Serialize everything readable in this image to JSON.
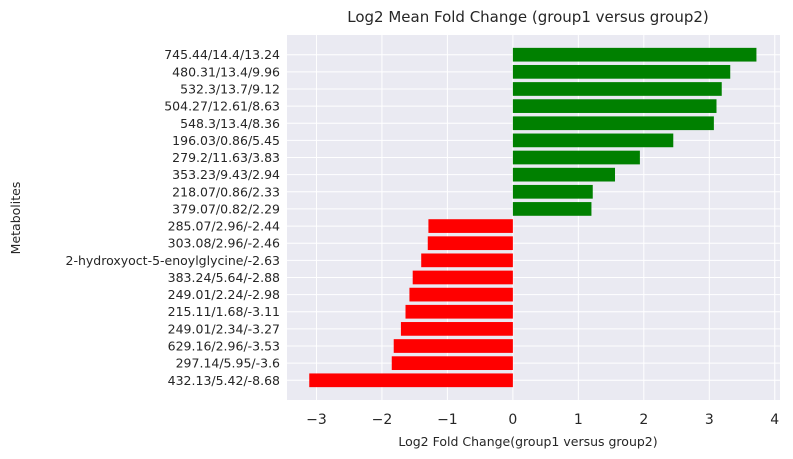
{
  "chart_data": {
    "type": "bar",
    "orientation": "horizontal",
    "title": "Log2 Mean Fold Change (group1 versus group2)",
    "xlabel": "Log2 Fold Change(group1 versus group2)",
    "ylabel": "Metabolites",
    "xlim": [
      -3.45,
      4.08
    ],
    "xticks": [
      -3,
      -2,
      -1,
      0,
      1,
      2,
      3,
      4
    ],
    "grid": true,
    "colors": {
      "positive": "#008000",
      "negative": "#ff0000",
      "background": "#eaeaf2",
      "grid": "#ffffff"
    },
    "categories": [
      "745.44/14.4/13.24",
      "480.31/13.4/9.96",
      "532.3/13.7/9.12",
      "504.27/12.61/8.63",
      "548.3/13.4/8.36",
      "196.03/0.86/5.45",
      "279.2/11.63/3.83",
      "353.23/9.43/2.94",
      "218.07/0.86/2.33",
      "379.07/0.82/2.29",
      "285.07/2.96/-2.44",
      "303.08/2.96/-2.46",
      "2-hydroxyoct-5-enoylglycine/-2.63",
      "383.24/5.64/-2.88",
      "249.01/2.24/-2.98",
      "215.11/1.68/-3.11",
      "249.01/2.34/-3.27",
      "629.16/2.96/-3.53",
      "297.14/5.95/-3.6",
      "432.13/5.42/-8.68"
    ],
    "values": [
      3.72,
      3.32,
      3.19,
      3.11,
      3.07,
      2.45,
      1.94,
      1.56,
      1.22,
      1.2,
      -1.29,
      -1.3,
      -1.4,
      -1.53,
      -1.58,
      -1.64,
      -1.71,
      -1.82,
      -1.85,
      -3.11
    ]
  }
}
